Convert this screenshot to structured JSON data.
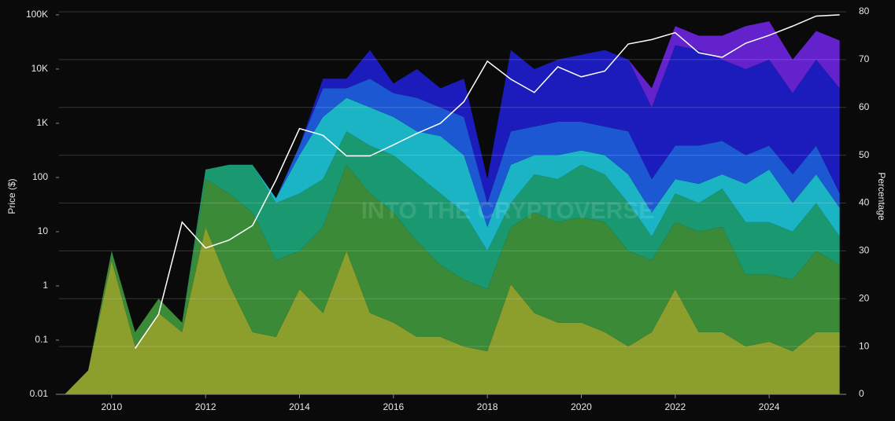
{
  "chart_data": {
    "type": "stacked-area-line",
    "watermark": "INTO THE CRYPTOVERSE",
    "ylabel": "Price ($)",
    "y2label": "Percentage",
    "yscale": "log",
    "grid": true,
    "x": [
      2009.0,
      2009.5,
      2010.0,
      2010.5,
      2011.0,
      2011.5,
      2012.0,
      2012.5,
      2013.0,
      2013.5,
      2014.0,
      2014.5,
      2015.0,
      2015.5,
      2016.0,
      2016.5,
      2017.0,
      2017.5,
      2018.0,
      2018.5,
      2019.0,
      2019.5,
      2020.0,
      2020.5,
      2021.0,
      2021.5,
      2022.0,
      2022.5,
      2023.0,
      2023.5,
      2024.0,
      2024.5,
      2025.0,
      2025.5
    ],
    "xlim": [
      2008.88,
      2025.64
    ],
    "xticks": [
      2010,
      2012,
      2014,
      2016,
      2018,
      2020,
      2022,
      2024
    ],
    "ylim": [
      0.01,
      114000
    ],
    "yticks": [
      0.01,
      0.1,
      1,
      10,
      100,
      {
        "value": 1000,
        "label": "1K"
      },
      {
        "value": 10000,
        "label": "10K"
      },
      {
        "value": 100000,
        "label": "100K"
      }
    ],
    "y2lim": [
      0,
      80
    ],
    "y2ticks": [
      0,
      10,
      20,
      30,
      40,
      50,
      60,
      70,
      80
    ],
    "series": [
      {
        "color": "#8c9e2c",
        "axis": "y2",
        "values": [
          0,
          5,
          28,
          10,
          17,
          13,
          35,
          23,
          13,
          12,
          22,
          17,
          30,
          17,
          15,
          12,
          12,
          10,
          9,
          23,
          17,
          15,
          15,
          13,
          10,
          13,
          22,
          13,
          13,
          10,
          11,
          9,
          13,
          13
        ]
      },
      {
        "color": "#3a8a38",
        "axis": "y2",
        "values": [
          0,
          0,
          2,
          3,
          3,
          2,
          10,
          19,
          25,
          16,
          8,
          18,
          18,
          25,
          23,
          20,
          15,
          14,
          13,
          12,
          21,
          21,
          22,
          23,
          20,
          15,
          14,
          21,
          22,
          15,
          14,
          15,
          17,
          14
        ]
      },
      {
        "color": "#1a9870",
        "axis": "y2",
        "values": [
          0,
          0,
          0,
          0,
          0,
          0,
          2,
          6,
          10,
          12,
          12,
          10,
          7,
          10,
          12,
          14,
          15,
          14,
          8,
          5,
          8,
          9,
          11,
          10,
          10,
          5,
          6,
          6,
          8,
          11,
          11,
          10,
          10,
          6
        ]
      },
      {
        "color": "#1ab4c4",
        "axis": "y2",
        "values": [
          0,
          0,
          0,
          0,
          0,
          0,
          0,
          0,
          0,
          1,
          8,
          13,
          7,
          8,
          8,
          9,
          12,
          12,
          5,
          8,
          4,
          5,
          3,
          4,
          6,
          5,
          3,
          4,
          3,
          8,
          11,
          6,
          6,
          6
        ]
      },
      {
        "color": "#1c58d2",
        "axis": "y2",
        "values": [
          0,
          0,
          0,
          0,
          0,
          0,
          0,
          0,
          0,
          0,
          2,
          6,
          2,
          6,
          5,
          7,
          6,
          8,
          5,
          7,
          6,
          7,
          6,
          6,
          9,
          7,
          7,
          8,
          7,
          6,
          5,
          6,
          6,
          3
        ]
      },
      {
        "color": "#1c1cbc",
        "axis": "y2",
        "values": [
          0,
          0,
          0,
          0,
          0,
          0,
          0,
          0,
          0,
          0,
          0,
          2,
          2,
          6,
          2,
          6,
          4,
          8,
          5,
          17,
          12,
          13,
          14,
          16,
          15,
          15,
          21,
          20,
          17,
          18,
          18,
          17,
          18,
          22
        ]
      },
      {
        "color": "#6422cc",
        "axis": "y2",
        "values": [
          0,
          0,
          0,
          0,
          0,
          0,
          0,
          0,
          0,
          0,
          0,
          0,
          0,
          0,
          0,
          0,
          0,
          0,
          0,
          0,
          0,
          0,
          0,
          0,
          0,
          4,
          4,
          3,
          5,
          9,
          8,
          7,
          6,
          10
        ]
      },
      {
        "color": "#ffffff",
        "axis": "y",
        "values": [
          null,
          null,
          null,
          0.07,
          0.3,
          15,
          5,
          7,
          13,
          90,
          800,
          600,
          250,
          250,
          400,
          650,
          1000,
          2500,
          14000,
          6500,
          3700,
          11000,
          7200,
          9200,
          29000,
          35000,
          47000,
          20000,
          16500,
          30000,
          42000,
          62000,
          95000,
          100000
        ]
      }
    ]
  }
}
